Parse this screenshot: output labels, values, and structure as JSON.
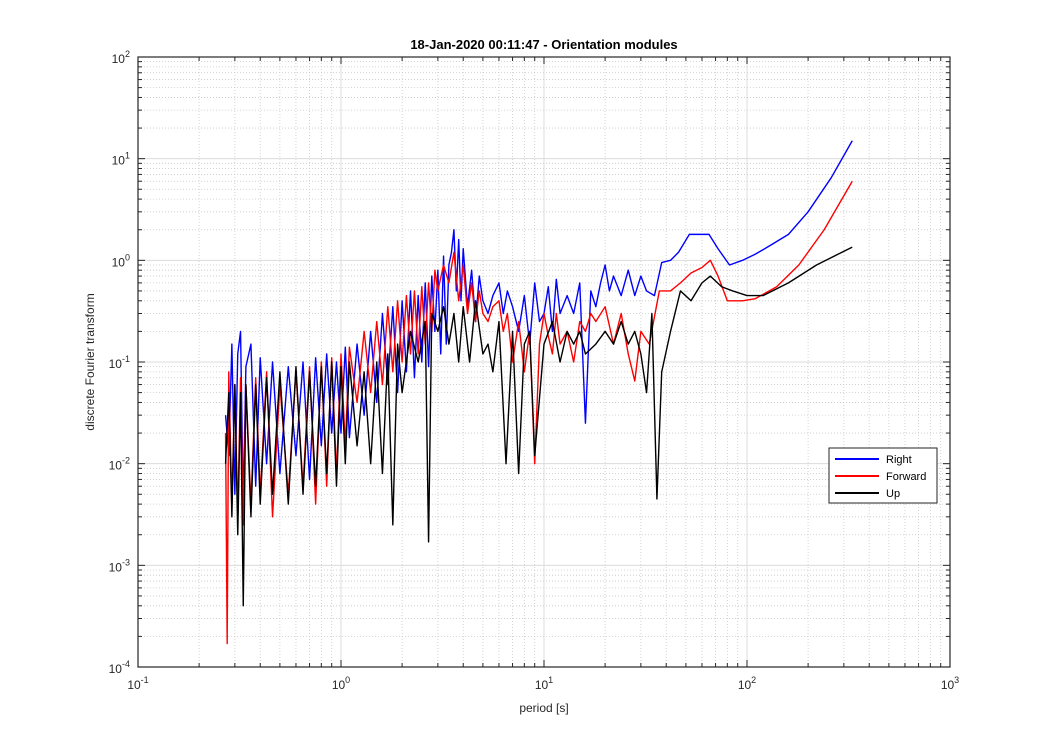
{
  "chart_data": {
    "type": "line",
    "title": "18-Jan-2020 00:11:47 - Orientation modules",
    "xlabel": "period [s]",
    "ylabel": "discrete Fourier transform",
    "xscale": "log",
    "yscale": "log",
    "xlim": [
      0.1,
      1000
    ],
    "ylim": [
      0.0001,
      100
    ],
    "grid": true,
    "minor_grid": true,
    "legend_position": "lower-right",
    "x_ticks": [
      {
        "base": "10",
        "exp": "-1"
      },
      {
        "base": "10",
        "exp": "0"
      },
      {
        "base": "10",
        "exp": "1"
      },
      {
        "base": "10",
        "exp": "2"
      },
      {
        "base": "10",
        "exp": "3"
      }
    ],
    "y_ticks": [
      {
        "base": "10",
        "exp": "-4"
      },
      {
        "base": "10",
        "exp": "-3"
      },
      {
        "base": "10",
        "exp": "-2"
      },
      {
        "base": "10",
        "exp": "-1"
      },
      {
        "base": "10",
        "exp": "0"
      },
      {
        "base": "10",
        "exp": "1"
      },
      {
        "base": "10",
        "exp": "2"
      }
    ],
    "series": [
      {
        "name": "Right",
        "color": "#0000ff",
        "x": [
          0.27,
          0.28,
          0.29,
          0.3,
          0.31,
          0.32,
          0.33,
          0.34,
          0.36,
          0.38,
          0.4,
          0.43,
          0.46,
          0.5,
          0.55,
          0.6,
          0.65,
          0.7,
          0.75,
          0.8,
          0.85,
          0.9,
          0.95,
          1.0,
          1.05,
          1.1,
          1.2,
          1.3,
          1.4,
          1.5,
          1.6,
          1.7,
          1.8,
          1.9,
          2.0,
          2.1,
          2.2,
          2.3,
          2.4,
          2.5,
          2.6,
          2.7,
          2.8,
          2.9,
          3.0,
          3.1,
          3.2,
          3.3,
          3.4,
          3.5,
          3.6,
          3.7,
          3.8,
          3.9,
          4.0,
          4.2,
          4.4,
          4.6,
          4.8,
          5.0,
          5.3,
          5.6,
          6.0,
          6.3,
          6.6,
          7.0,
          7.5,
          8.0,
          8.5,
          9.0,
          9.5,
          10.0,
          10.5,
          11.0,
          11.5,
          12.0,
          13.0,
          14.0,
          15.0,
          16.0,
          17.0,
          18.0,
          19.0,
          20.0,
          21.0,
          22.0,
          24.0,
          26.0,
          28.0,
          30.0,
          32.0,
          35.0,
          38.0,
          42.0,
          46.0,
          52.0,
          58.0,
          65.0,
          72.0,
          82.0,
          95.0,
          110.0,
          130.0,
          160.0,
          200.0,
          260.0,
          330.0
        ],
        "y": [
          0.03,
          0.012,
          0.15,
          0.005,
          0.12,
          0.2,
          0.004,
          0.09,
          0.15,
          0.006,
          0.11,
          0.01,
          0.1,
          0.008,
          0.09,
          0.012,
          0.1,
          0.007,
          0.11,
          0.015,
          0.12,
          0.02,
          0.1,
          0.02,
          0.14,
          0.018,
          0.15,
          0.03,
          0.2,
          0.04,
          0.3,
          0.06,
          0.35,
          0.05,
          0.4,
          0.08,
          0.5,
          0.07,
          0.45,
          0.1,
          0.6,
          0.09,
          0.7,
          0.2,
          0.8,
          0.12,
          1.1,
          0.15,
          0.9,
          1.2,
          2.0,
          0.5,
          1.6,
          0.4,
          1.3,
          0.35,
          0.8,
          0.25,
          0.7,
          0.4,
          0.3,
          0.45,
          0.6,
          0.3,
          0.5,
          0.35,
          0.2,
          0.45,
          0.15,
          0.6,
          0.25,
          0.3,
          0.55,
          0.2,
          0.65,
          0.3,
          0.45,
          0.3,
          0.6,
          0.025,
          0.5,
          0.35,
          0.6,
          0.9,
          0.5,
          0.7,
          0.45,
          0.8,
          0.45,
          0.7,
          0.5,
          0.45,
          0.95,
          1.0,
          1.2,
          1.8,
          1.8,
          1.8,
          1.3,
          0.9,
          1.0,
          1.15,
          1.4,
          1.8,
          3.0,
          6.5,
          15.0
        ]
      },
      {
        "name": "Forward",
        "color": "#ff0000",
        "x": [
          0.27,
          0.275,
          0.28,
          0.29,
          0.3,
          0.31,
          0.32,
          0.33,
          0.34,
          0.36,
          0.38,
          0.4,
          0.43,
          0.46,
          0.5,
          0.55,
          0.6,
          0.65,
          0.7,
          0.75,
          0.8,
          0.85,
          0.9,
          0.95,
          1.0,
          1.05,
          1.1,
          1.2,
          1.3,
          1.4,
          1.5,
          1.6,
          1.7,
          1.8,
          1.9,
          2.0,
          2.1,
          2.2,
          2.3,
          2.4,
          2.5,
          2.6,
          2.7,
          2.8,
          2.9,
          3.0,
          3.2,
          3.4,
          3.6,
          3.8,
          4.0,
          4.2,
          4.4,
          4.6,
          4.8,
          5.0,
          5.3,
          5.6,
          6.0,
          6.3,
          6.6,
          7.0,
          7.5,
          8.0,
          8.5,
          9.0,
          9.5,
          10.0,
          10.5,
          11.0,
          11.5,
          12.0,
          13.0,
          14.0,
          15.0,
          16.0,
          17.0,
          18.0,
          20.0,
          22.0,
          24.0,
          26.0,
          28.0,
          30.0,
          33.0,
          37.0,
          42.0,
          47.0,
          53.0,
          60.0,
          66.0,
          72.0,
          80.0,
          95.0,
          110.0,
          140.0,
          180.0,
          240.0,
          330.0
        ],
        "y": [
          0.02,
          0.00017,
          0.08,
          0.004,
          0.06,
          0.003,
          0.07,
          0.0025,
          0.06,
          0.004,
          0.07,
          0.005,
          0.08,
          0.003,
          0.06,
          0.005,
          0.08,
          0.006,
          0.09,
          0.004,
          0.1,
          0.006,
          0.11,
          0.008,
          0.12,
          0.015,
          0.14,
          0.04,
          0.2,
          0.05,
          0.25,
          0.06,
          0.35,
          0.08,
          0.4,
          0.1,
          0.45,
          0.12,
          0.5,
          0.12,
          0.55,
          0.15,
          0.6,
          0.2,
          0.8,
          0.5,
          0.9,
          0.6,
          1.2,
          0.4,
          0.9,
          0.3,
          0.6,
          0.25,
          0.5,
          0.3,
          0.25,
          0.35,
          0.4,
          0.2,
          0.3,
          0.1,
          0.25,
          0.08,
          0.2,
          0.01,
          0.15,
          0.3,
          0.18,
          0.12,
          0.3,
          0.15,
          0.2,
          0.1,
          0.25,
          0.2,
          0.3,
          0.25,
          0.35,
          0.15,
          0.3,
          0.12,
          0.065,
          0.2,
          0.15,
          0.5,
          0.5,
          0.6,
          0.75,
          0.85,
          1.0,
          0.7,
          0.4,
          0.4,
          0.42,
          0.55,
          0.9,
          2.0,
          6.0
        ]
      },
      {
        "name": "Up",
        "color": "#000000",
        "x": [
          0.27,
          0.28,
          0.29,
          0.3,
          0.31,
          0.32,
          0.33,
          0.34,
          0.36,
          0.38,
          0.4,
          0.43,
          0.46,
          0.5,
          0.55,
          0.6,
          0.65,
          0.7,
          0.75,
          0.8,
          0.85,
          0.9,
          0.95,
          1.0,
          1.05,
          1.1,
          1.2,
          1.3,
          1.4,
          1.5,
          1.6,
          1.7,
          1.8,
          1.9,
          2.0,
          2.2,
          2.4,
          2.6,
          2.7,
          2.8,
          3.0,
          3.2,
          3.4,
          3.6,
          3.8,
          4.0,
          4.3,
          4.6,
          5.0,
          5.3,
          5.6,
          6.0,
          6.5,
          7.0,
          7.5,
          8.0,
          8.5,
          9.0,
          10.0,
          11.0,
          12.0,
          13.0,
          14.0,
          15.0,
          16.0,
          18.0,
          20.0,
          22.0,
          24.0,
          26.0,
          28.0,
          30.0,
          32.0,
          34.0,
          36.0,
          38.0,
          42.0,
          47.0,
          53.0,
          60.0,
          66.0,
          75.0,
          85.0,
          100.0,
          120.0,
          160.0,
          220.0,
          330.0
        ],
        "y": [
          0.01,
          0.05,
          0.003,
          0.06,
          0.002,
          0.05,
          0.0004,
          0.06,
          0.003,
          0.06,
          0.004,
          0.07,
          0.005,
          0.08,
          0.004,
          0.09,
          0.005,
          0.08,
          0.006,
          0.09,
          0.008,
          0.1,
          0.006,
          0.09,
          0.01,
          0.1,
          0.015,
          0.08,
          0.01,
          0.1,
          0.008,
          0.12,
          0.0025,
          0.15,
          0.05,
          0.2,
          0.1,
          0.25,
          0.0017,
          0.3,
          0.2,
          0.35,
          0.15,
          0.3,
          0.1,
          0.35,
          0.1,
          0.4,
          0.12,
          0.15,
          0.08,
          0.25,
          0.01,
          0.2,
          0.008,
          0.15,
          0.2,
          0.012,
          0.15,
          0.25,
          0.1,
          0.2,
          0.15,
          0.2,
          0.12,
          0.15,
          0.2,
          0.15,
          0.25,
          0.15,
          0.2,
          0.12,
          0.05,
          0.3,
          0.0045,
          0.08,
          0.2,
          0.5,
          0.4,
          0.6,
          0.7,
          0.55,
          0.5,
          0.45,
          0.45,
          0.6,
          0.9,
          1.35
        ]
      }
    ]
  }
}
